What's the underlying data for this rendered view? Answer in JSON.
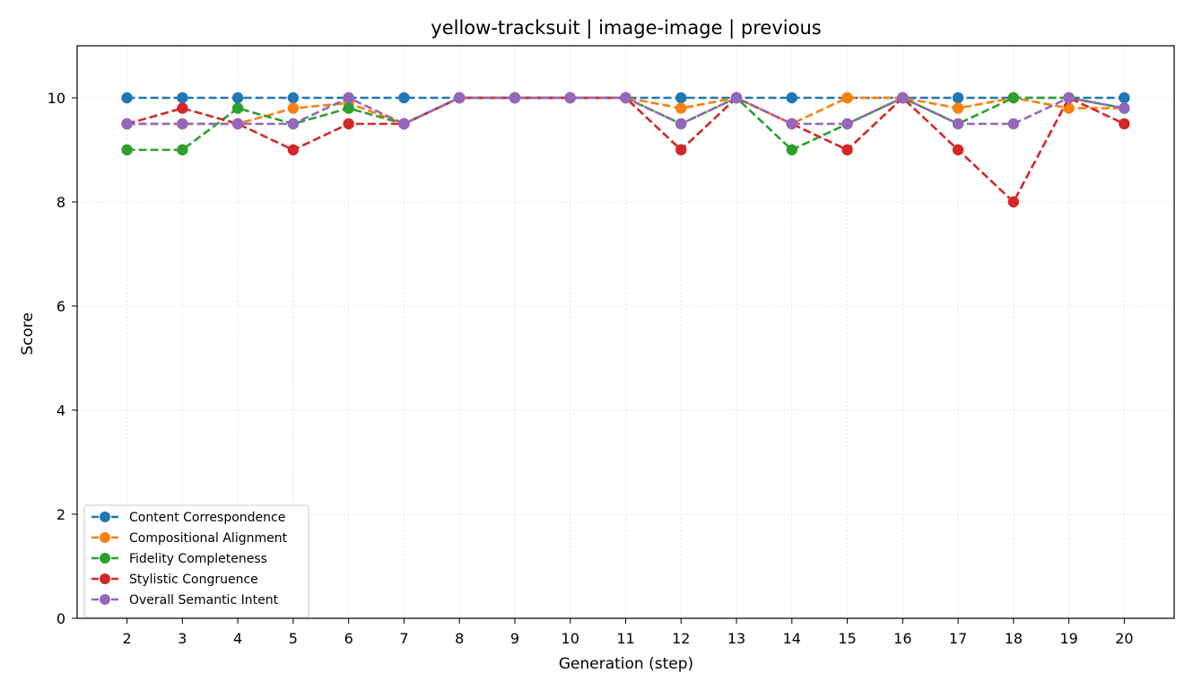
{
  "chart_data": {
    "type": "line",
    "title": "yellow-tracksuit | image-image | previous",
    "xlabel": "Generation (step)",
    "ylabel": "Score",
    "x": [
      2,
      3,
      4,
      5,
      6,
      7,
      8,
      9,
      10,
      11,
      12,
      13,
      14,
      15,
      16,
      17,
      18,
      19,
      20
    ],
    "xlim": [
      1.1,
      20.9
    ],
    "ylim": [
      0,
      11
    ],
    "yticks": [
      0,
      2,
      4,
      6,
      8,
      10
    ],
    "grid": true,
    "legend_position": "lower-left",
    "series": [
      {
        "name": "Content Correspondence",
        "color": "#1f77b4",
        "values": [
          10,
          10,
          10,
          10,
          10,
          10,
          10,
          10,
          10,
          10,
          10,
          10,
          10,
          10,
          10,
          10,
          10,
          10,
          10
        ]
      },
      {
        "name": "Compositional Alignment",
        "color": "#ff7f0e",
        "values": [
          9.5,
          9.5,
          9.5,
          9.8,
          9.9,
          9.5,
          10,
          10,
          10,
          10,
          9.8,
          10,
          9.5,
          10,
          10,
          9.8,
          10,
          9.8,
          9.8
        ]
      },
      {
        "name": "Fidelity Completeness",
        "color": "#2ca02c",
        "values": [
          9,
          9,
          9.8,
          9.5,
          9.8,
          9.5,
          10,
          10,
          10,
          10,
          9.5,
          10,
          9,
          9.5,
          10,
          9.5,
          10,
          10,
          9.8
        ]
      },
      {
        "name": "Stylistic Congruence",
        "color": "#d62728",
        "values": [
          9.5,
          9.8,
          9.5,
          9,
          9.5,
          9.5,
          10,
          10,
          10,
          10,
          9,
          10,
          9.5,
          9,
          10,
          9,
          8,
          10,
          9.5
        ]
      },
      {
        "name": "Overall Semantic Intent",
        "color": "#9467bd",
        "values": [
          9.5,
          9.5,
          9.5,
          9.5,
          10,
          9.5,
          10,
          10,
          10,
          10,
          9.5,
          10,
          9.5,
          9.5,
          10,
          9.5,
          9.5,
          10,
          9.8
        ]
      }
    ]
  }
}
